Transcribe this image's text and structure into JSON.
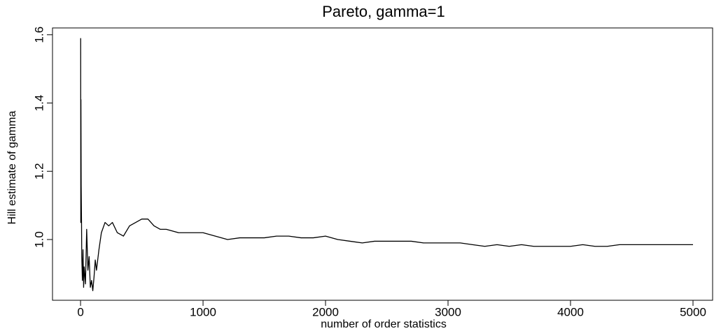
{
  "chart_data": {
    "type": "line",
    "title": "Pareto, gamma=1",
    "x_label": "number of order statistics",
    "y_label": "Hill estimate of gamma",
    "x": [
      1,
      2,
      3,
      5,
      8,
      10,
      15,
      20,
      25,
      30,
      40,
      50,
      60,
      70,
      80,
      90,
      100,
      110,
      120,
      130,
      150,
      170,
      200,
      230,
      260,
      300,
      350,
      400,
      450,
      500,
      550,
      600,
      650,
      700,
      800,
      900,
      1000,
      1100,
      1200,
      1300,
      1400,
      1500,
      1600,
      1700,
      1800,
      1900,
      2000,
      2100,
      2200,
      2300,
      2400,
      2500,
      2600,
      2700,
      2800,
      2900,
      3000,
      3100,
      3200,
      3300,
      3400,
      3500,
      3600,
      3700,
      3800,
      3900,
      4000,
      4100,
      4200,
      4300,
      4400,
      4500,
      4600,
      4700,
      4800,
      4900,
      5000
    ],
    "series": [
      {
        "color": "#000000",
        "values": [
          1.59,
          1.05,
          1.41,
          1.16,
          1.05,
          0.95,
          0.88,
          0.97,
          0.86,
          0.92,
          0.87,
          1.03,
          0.91,
          0.95,
          0.86,
          0.88,
          0.85,
          0.89,
          0.94,
          0.91,
          0.97,
          1.02,
          1.05,
          1.04,
          1.05,
          1.02,
          1.01,
          1.04,
          1.05,
          1.06,
          1.06,
          1.04,
          1.03,
          1.03,
          1.02,
          1.02,
          1.02,
          1.01,
          1.0,
          1.005,
          1.005,
          1.005,
          1.01,
          1.01,
          1.005,
          1.005,
          1.01,
          1.0,
          0.995,
          0.99,
          0.995,
          0.995,
          0.995,
          0.995,
          0.99,
          0.99,
          0.99,
          0.99,
          0.985,
          0.98,
          0.985,
          0.98,
          0.985,
          0.98,
          0.98,
          0.98,
          0.98,
          0.985,
          0.98,
          0.98,
          0.985,
          0.985,
          0.985,
          0.985,
          0.985,
          0.985,
          0.985
        ]
      }
    ],
    "xlim": [
      -229,
      5160
    ],
    "ylim": [
      0.822,
      1.62
    ],
    "xticks": [
      0,
      1000,
      2000,
      3000,
      4000,
      5000
    ],
    "yticks": [
      {
        "value": 1,
        "label": "1.0"
      },
      1.2,
      1.4,
      1.6
    ]
  }
}
